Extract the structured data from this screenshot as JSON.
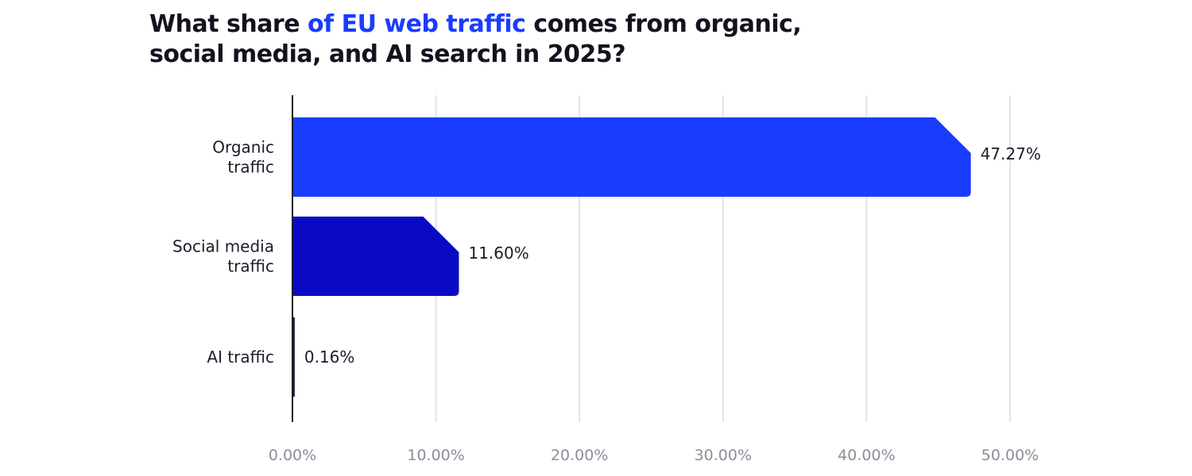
{
  "chart_data": {
    "type": "bar",
    "orientation": "horizontal",
    "title_parts": [
      "What share ",
      "of EU web traffic",
      " comes from organic,",
      "social media, and AI search in 2025?"
    ],
    "categories": [
      [
        "Organic",
        "traffic"
      ],
      [
        "Social media",
        "traffic"
      ],
      [
        "AI traffic"
      ]
    ],
    "values": [
      47.27,
      11.6,
      0.16
    ],
    "data_labels": [
      "47.27%",
      "11.60%",
      "0.16%"
    ],
    "colors": [
      "#1a3cff",
      "#0a0ac2",
      "#1b1c3a"
    ],
    "title_highlight_color": "#1a3cff",
    "xlim": [
      0,
      50
    ],
    "xticks": [
      0,
      10,
      20,
      30,
      40,
      50
    ],
    "xtick_labels": [
      "0.00%",
      "10.00%",
      "20.00%",
      "30.00%",
      "40.00%",
      "50.00%"
    ],
    "grid": "vertical",
    "xlabel": "",
    "ylabel": ""
  }
}
